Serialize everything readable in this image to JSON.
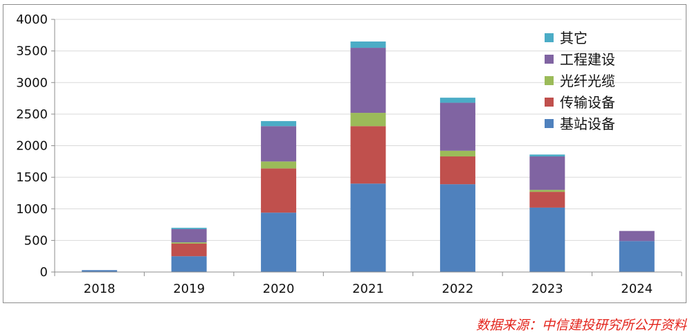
{
  "chart_data": {
    "type": "bar",
    "stacked": true,
    "categories": [
      "2018",
      "2019",
      "2020",
      "2021",
      "2022",
      "2023",
      "2024"
    ],
    "series": [
      {
        "name": "基站设备",
        "color": "#4f81bd",
        "values": [
          30,
          250,
          940,
          1400,
          1390,
          1020,
          490
        ]
      },
      {
        "name": "传输设备",
        "color": "#c0504d",
        "values": [
          0,
          200,
          700,
          910,
          440,
          250,
          0
        ]
      },
      {
        "name": "光纤光缆",
        "color": "#9bbb59",
        "values": [
          0,
          20,
          110,
          210,
          90,
          30,
          0
        ]
      },
      {
        "name": "工程建设",
        "color": "#8064a2",
        "values": [
          0,
          210,
          560,
          1030,
          760,
          530,
          160
        ]
      },
      {
        "name": "其它",
        "color": "#4bacc6",
        "values": [
          0,
          20,
          80,
          100,
          80,
          30,
          0
        ]
      }
    ],
    "legend_order": [
      "其它",
      "工程建设",
      "光纤光缆",
      "传输设备",
      "基站设备"
    ],
    "y_ticks": [
      "0",
      "500",
      "1000",
      "1500",
      "2000",
      "2500",
      "3000",
      "3500",
      "4000"
    ],
    "ylim": [
      0,
      4000
    ],
    "grid": "horizontal",
    "legend_position": "top-right"
  },
  "source_note": "数据来源：中信建投研究所公开资料"
}
